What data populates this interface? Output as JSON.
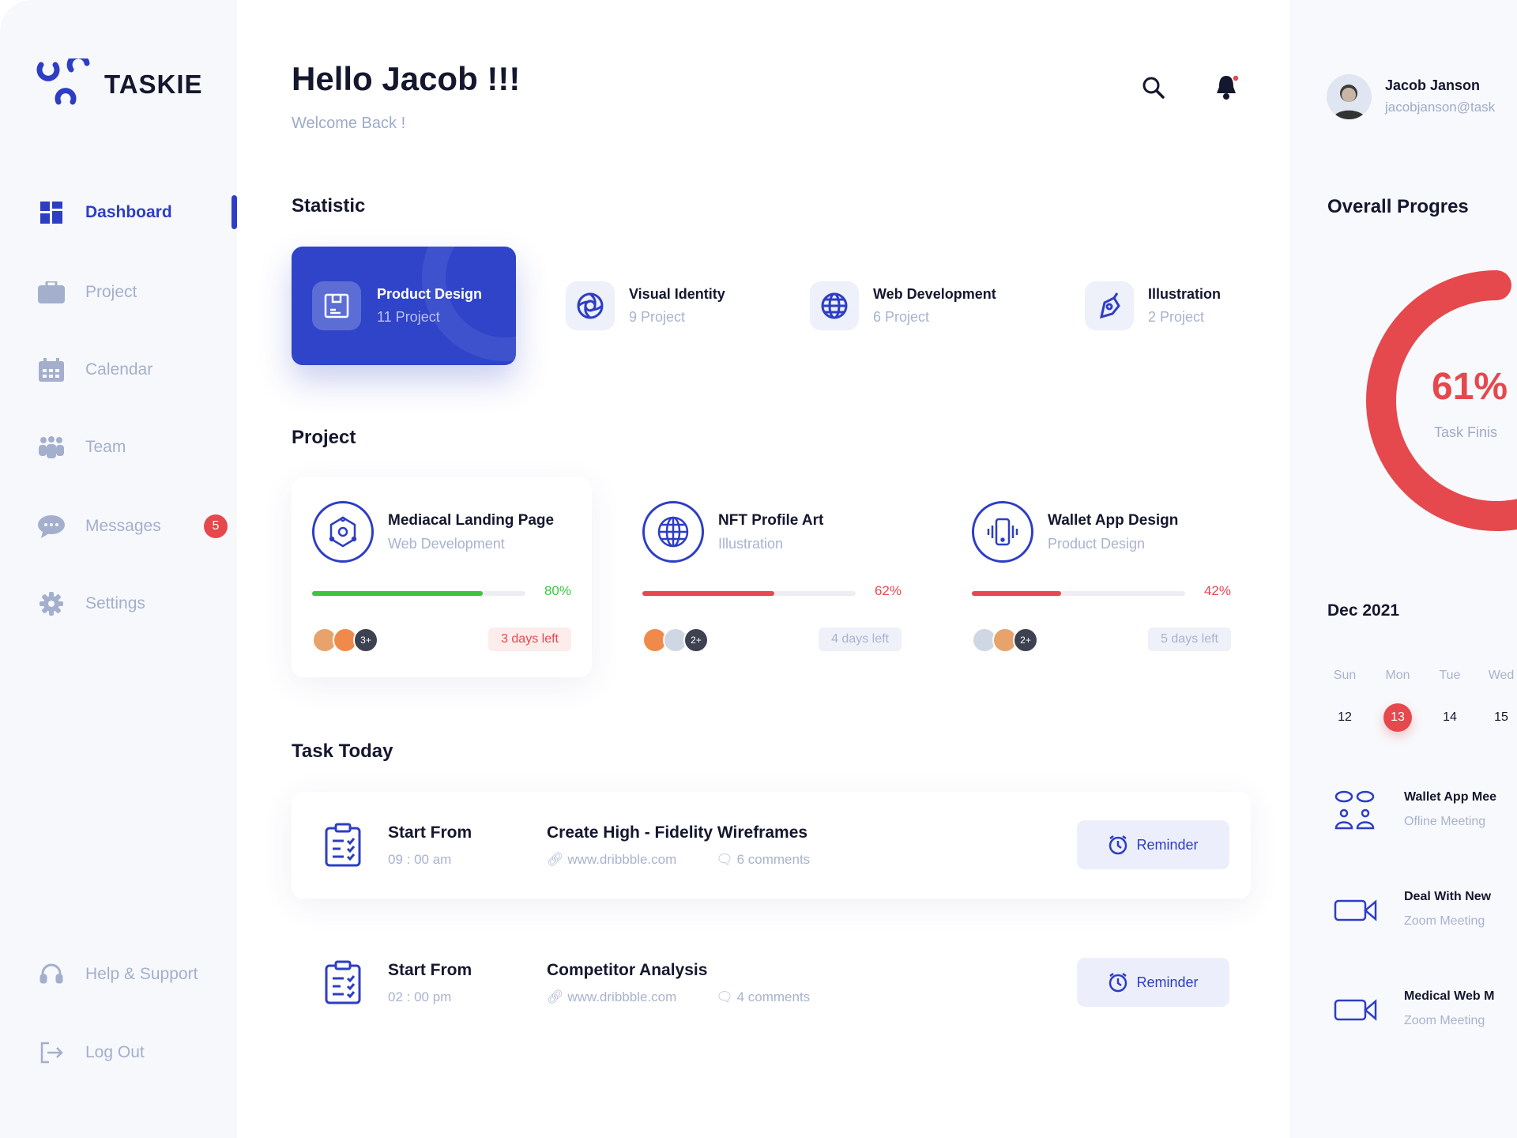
{
  "brand": {
    "name": "TASKIE",
    "accent": "#2d3ec4",
    "danger": "#e5484d",
    "success": "#3ec43e"
  },
  "sidebar": {
    "items": [
      {
        "label": "Dashboard",
        "icon": "grid-icon"
      },
      {
        "label": "Project",
        "icon": "briefcase-icon"
      },
      {
        "label": "Calendar",
        "icon": "calendar-icon"
      },
      {
        "label": "Team",
        "icon": "team-icon"
      },
      {
        "label": "Messages",
        "icon": "chat-icon",
        "badge": "5"
      },
      {
        "label": "Settings",
        "icon": "gear-icon"
      }
    ],
    "bottom": [
      {
        "label": "Help & Support",
        "icon": "headset-icon"
      },
      {
        "label": "Log Out",
        "icon": "logout-icon"
      }
    ]
  },
  "header": {
    "title": "Hello Jacob !!!",
    "subtitle": "Welcome Back !"
  },
  "user": {
    "name": "Jacob Janson",
    "email": "jacobjanson@task"
  },
  "statistic": {
    "heading": "Statistic",
    "items": [
      {
        "title": "Product Design",
        "count": "11 Project",
        "icon": "save-icon",
        "selected": true
      },
      {
        "title": "Visual Identity",
        "count": "9 Project",
        "icon": "aperture-icon"
      },
      {
        "title": "Web Development",
        "count": "6 Project",
        "icon": "globe-icon"
      },
      {
        "title": "Illustration",
        "count": "2 Project",
        "icon": "pen-tool-icon"
      }
    ]
  },
  "projects": {
    "heading": "Project",
    "items": [
      {
        "title": "Mediacal Landing Page",
        "category": "Web Development",
        "progress": 80,
        "progress_label": "80%",
        "color": "#3ec43e",
        "extra": "3+",
        "days": "3 days left"
      },
      {
        "title": "NFT Profile Art",
        "category": "Illustration",
        "progress": 62,
        "progress_label": "62%",
        "color": "#e5484d",
        "extra": "2+",
        "days": "4 days left"
      },
      {
        "title": "Wallet App Design",
        "category": "Product Design",
        "progress": 42,
        "progress_label": "42%",
        "color": "#e5484d",
        "extra": "2+",
        "days": "5 days left"
      }
    ]
  },
  "tasks": {
    "heading": "Task Today",
    "items": [
      {
        "start_label": "Start From",
        "time": "09 : 00 am",
        "title": "Create High - Fidelity Wireframes",
        "link": "www.dribbble.com",
        "comments": "6 comments",
        "button": "Reminder"
      },
      {
        "start_label": "Start From",
        "time": "02 : 00 pm",
        "title": "Competitor Analysis",
        "link": "www.dribbble.com",
        "comments": "4 comments",
        "button": "Reminder"
      }
    ]
  },
  "progress": {
    "heading": "Overall Progres",
    "value": 61,
    "label": "61%",
    "caption": "Task Finis"
  },
  "calendar": {
    "month": "Dec 2021",
    "days": [
      {
        "name": "Sun",
        "date": "12"
      },
      {
        "name": "Mon",
        "date": "13",
        "selected": true
      },
      {
        "name": "Tue",
        "date": "14"
      },
      {
        "name": "Wed",
        "date": "15"
      }
    ]
  },
  "meetings": [
    {
      "title": "Wallet App Mee",
      "type": "Ofline Meeting",
      "icon": "people-chat-icon"
    },
    {
      "title": "Deal With New",
      "type": "Zoom Meeting",
      "icon": "video-camera-icon"
    },
    {
      "title": "Medical Web M",
      "type": "Zoom Meeting",
      "icon": "video-camera-icon"
    }
  ]
}
